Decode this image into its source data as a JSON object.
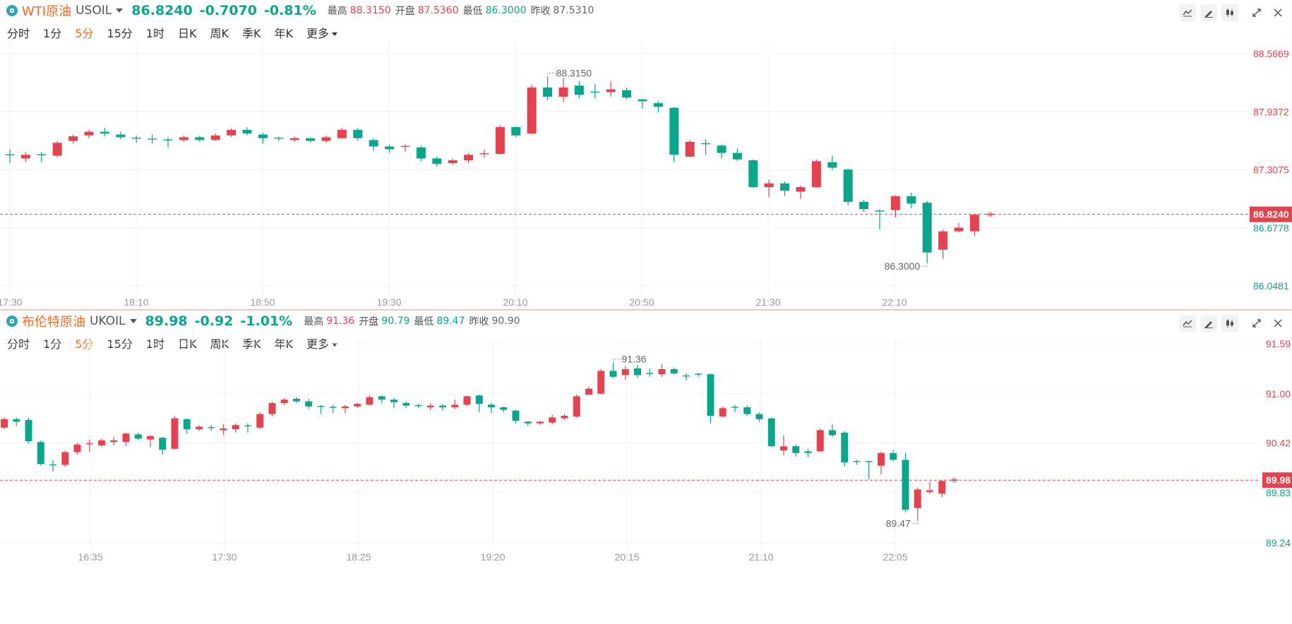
{
  "panels": [
    {
      "name": "WTI原油",
      "symbol": "USOIL",
      "price": "86.8240",
      "change": "-0.7070",
      "change_pct": "-0.81%",
      "high_label": "最高",
      "high": "88.3150",
      "open_label": "开盘",
      "open": "87.5360",
      "low_label": "最低",
      "low": "86.3000",
      "prev_label": "昨收",
      "prev_close": "87.5310",
      "periods": [
        "分时",
        "1分",
        "5分",
        "15分",
        "1时",
        "日K",
        "周K",
        "季K",
        "年K",
        "更多"
      ],
      "active_period": "5分",
      "y_ticks": [
        "88.5669",
        "87.9372",
        "87.3075",
        "86.6778",
        "86.0481"
      ],
      "x_ticks": [
        "17:30",
        "18:10",
        "18:50",
        "19:30",
        "20:10",
        "20:50",
        "21:30",
        "22:10"
      ],
      "current_price_tag": "86.8240",
      "max_label": "88.3150",
      "min_label": "86.3000"
    },
    {
      "name": "布伦特原油",
      "symbol": "UKOIL",
      "price": "89.98",
      "change": "-0.92",
      "change_pct": "-1.01%",
      "high_label": "最高",
      "high": "91.36",
      "open_label": "开盘",
      "open": "90.79",
      "low_label": "最低",
      "low": "89.47",
      "prev_label": "昨收",
      "prev_close": "90.90",
      "periods": [
        "分时",
        "1分",
        "5分",
        "15分",
        "1时",
        "日K",
        "周K",
        "季K",
        "年K",
        "更多"
      ],
      "active_period": "5分",
      "y_ticks": [
        "91.59",
        "91.00",
        "90.42",
        "89.83",
        "89.24"
      ],
      "x_ticks": [
        "16:35",
        "17:30",
        "18:25",
        "19:20",
        "20:15",
        "21:10",
        "22:05"
      ],
      "current_price_tag": "89.98",
      "max_label": "91.36",
      "min_label": "89.47"
    }
  ],
  "colors": {
    "up": "#e5424f",
    "down": "#0aa58b",
    "accent": "#f26b21",
    "grid": "#f0f0f0",
    "axis_text": "#999999"
  },
  "chart_data": [
    {
      "type": "candlestick",
      "title": "WTI原油 USOIL",
      "ylim": [
        86.0481,
        88.5669
      ],
      "y_ticks": [
        88.5669,
        87.9372,
        87.3075,
        86.6778,
        86.0481
      ],
      "x_ticks": [
        "17:30",
        "18:10",
        "18:50",
        "19:30",
        "20:10",
        "20:50",
        "21:30",
        "22:10"
      ],
      "current_price": 86.824,
      "high": 88.315,
      "low": 86.3,
      "candles": [
        {
          "o": 87.47,
          "c": 87.47,
          "h": 87.53,
          "l": 87.38
        },
        {
          "o": 87.43,
          "c": 87.47,
          "h": 87.5,
          "l": 87.39
        },
        {
          "o": 87.47,
          "c": 87.46,
          "h": 87.5,
          "l": 87.39
        },
        {
          "o": 87.46,
          "c": 87.6,
          "h": 87.62,
          "l": 87.44
        },
        {
          "o": 87.62,
          "c": 87.67,
          "h": 87.69,
          "l": 87.59
        },
        {
          "o": 87.68,
          "c": 87.72,
          "h": 87.74,
          "l": 87.65
        },
        {
          "o": 87.72,
          "c": 87.7,
          "h": 87.76,
          "l": 87.67
        },
        {
          "o": 87.69,
          "c": 87.66,
          "h": 87.72,
          "l": 87.64
        },
        {
          "o": 87.65,
          "c": 87.64,
          "h": 87.68,
          "l": 87.6
        },
        {
          "o": 87.64,
          "c": 87.63,
          "h": 87.69,
          "l": 87.59
        },
        {
          "o": 87.63,
          "c": 87.63,
          "h": 87.66,
          "l": 87.55
        },
        {
          "o": 87.63,
          "c": 87.66,
          "h": 87.68,
          "l": 87.61
        },
        {
          "o": 87.66,
          "c": 87.63,
          "h": 87.68,
          "l": 87.61
        },
        {
          "o": 87.63,
          "c": 87.68,
          "h": 87.7,
          "l": 87.62
        },
        {
          "o": 87.68,
          "c": 87.74,
          "h": 87.76,
          "l": 87.66
        },
        {
          "o": 87.74,
          "c": 87.7,
          "h": 87.77,
          "l": 87.68
        },
        {
          "o": 87.69,
          "c": 87.65,
          "h": 87.71,
          "l": 87.59
        },
        {
          "o": 87.65,
          "c": 87.64,
          "h": 87.67,
          "l": 87.62
        },
        {
          "o": 87.63,
          "c": 87.65,
          "h": 87.67,
          "l": 87.61
        },
        {
          "o": 87.65,
          "c": 87.62,
          "h": 87.66,
          "l": 87.6
        },
        {
          "o": 87.62,
          "c": 87.66,
          "h": 87.68,
          "l": 87.6
        },
        {
          "o": 87.65,
          "c": 87.74,
          "h": 87.76,
          "l": 87.64
        },
        {
          "o": 87.74,
          "c": 87.65,
          "h": 87.76,
          "l": 87.62
        },
        {
          "o": 87.63,
          "c": 87.56,
          "h": 87.65,
          "l": 87.51
        },
        {
          "o": 87.56,
          "c": 87.53,
          "h": 87.58,
          "l": 87.49
        },
        {
          "o": 87.55,
          "c": 87.56,
          "h": 87.58,
          "l": 87.5
        },
        {
          "o": 87.55,
          "c": 87.43,
          "h": 87.57,
          "l": 87.4
        },
        {
          "o": 87.43,
          "c": 87.37,
          "h": 87.45,
          "l": 87.34
        },
        {
          "o": 87.38,
          "c": 87.41,
          "h": 87.43,
          "l": 87.36
        },
        {
          "o": 87.41,
          "c": 87.47,
          "h": 87.49,
          "l": 87.38
        },
        {
          "o": 87.47,
          "c": 87.48,
          "h": 87.53,
          "l": 87.44
        },
        {
          "o": 87.48,
          "c": 87.77,
          "h": 87.79,
          "l": 87.47
        },
        {
          "o": 87.77,
          "c": 87.68,
          "h": 87.78,
          "l": 87.66
        },
        {
          "o": 87.7,
          "c": 88.2,
          "h": 88.23,
          "l": 87.69
        },
        {
          "o": 88.2,
          "c": 88.1,
          "h": 88.31,
          "l": 88.06
        },
        {
          "o": 88.1,
          "c": 88.2,
          "h": 88.3,
          "l": 88.04
        },
        {
          "o": 88.22,
          "c": 88.12,
          "h": 88.27,
          "l": 88.08
        },
        {
          "o": 88.15,
          "c": 88.15,
          "h": 88.24,
          "l": 88.08
        },
        {
          "o": 88.15,
          "c": 88.18,
          "h": 88.27,
          "l": 88.1
        },
        {
          "o": 88.17,
          "c": 88.09,
          "h": 88.2,
          "l": 88.07
        },
        {
          "o": 88.07,
          "c": 88.05,
          "h": 88.08,
          "l": 87.97
        },
        {
          "o": 88.03,
          "c": 87.99,
          "h": 88.05,
          "l": 87.93
        },
        {
          "o": 87.98,
          "c": 87.47,
          "h": 87.99,
          "l": 87.39
        },
        {
          "o": 87.45,
          "c": 87.61,
          "h": 87.63,
          "l": 87.44
        },
        {
          "o": 87.59,
          "c": 87.59,
          "h": 87.64,
          "l": 87.47
        },
        {
          "o": 87.57,
          "c": 87.49,
          "h": 87.58,
          "l": 87.43
        },
        {
          "o": 87.49,
          "c": 87.42,
          "h": 87.54,
          "l": 87.4
        },
        {
          "o": 87.41,
          "c": 87.12,
          "h": 87.42,
          "l": 87.11
        },
        {
          "o": 87.12,
          "c": 87.16,
          "h": 87.2,
          "l": 87.01
        },
        {
          "o": 87.16,
          "c": 87.08,
          "h": 87.18,
          "l": 87.02
        },
        {
          "o": 87.07,
          "c": 87.12,
          "h": 87.14,
          "l": 86.99
        },
        {
          "o": 87.12,
          "c": 87.4,
          "h": 87.42,
          "l": 87.11
        },
        {
          "o": 87.39,
          "c": 87.33,
          "h": 87.46,
          "l": 87.3
        },
        {
          "o": 87.31,
          "c": 86.96,
          "h": 87.32,
          "l": 86.92
        },
        {
          "o": 86.96,
          "c": 86.88,
          "h": 86.98,
          "l": 86.85
        },
        {
          "o": 86.86,
          "c": 86.86,
          "h": 86.88,
          "l": 86.66
        },
        {
          "o": 86.87,
          "c": 87.02,
          "h": 87.03,
          "l": 86.79
        },
        {
          "o": 87.02,
          "c": 86.94,
          "h": 87.06,
          "l": 86.89
        },
        {
          "o": 86.95,
          "c": 86.41,
          "h": 86.97,
          "l": 86.3
        },
        {
          "o": 86.44,
          "c": 86.64,
          "h": 86.66,
          "l": 86.34
        },
        {
          "o": 86.64,
          "c": 86.68,
          "h": 86.73,
          "l": 86.63
        },
        {
          "o": 86.64,
          "c": 86.82,
          "h": 86.83,
          "l": 86.59
        },
        {
          "o": 86.82,
          "c": 86.824,
          "h": 86.83,
          "l": 86.81
        }
      ]
    },
    {
      "type": "candlestick",
      "title": "布伦特原油 UKOIL",
      "ylim": [
        89.24,
        91.59
      ],
      "y_ticks": [
        91.59,
        91.0,
        90.42,
        89.83,
        89.24
      ],
      "x_ticks": [
        "16:35",
        "17:30",
        "18:25",
        "19:20",
        "20:15",
        "21:10",
        "22:05"
      ],
      "current_price": 89.98,
      "high": 91.36,
      "low": 89.47,
      "candles": [
        {
          "o": 90.6,
          "c": 90.7,
          "h": 90.72,
          "l": 90.58
        },
        {
          "o": 90.7,
          "c": 90.67,
          "h": 90.72,
          "l": 90.62
        },
        {
          "o": 90.69,
          "c": 90.44,
          "h": 90.72,
          "l": 90.41
        },
        {
          "o": 90.43,
          "c": 90.17,
          "h": 90.45,
          "l": 90.15
        },
        {
          "o": 90.16,
          "c": 90.16,
          "h": 90.22,
          "l": 90.08
        },
        {
          "o": 90.16,
          "c": 90.31,
          "h": 90.33,
          "l": 90.14
        },
        {
          "o": 90.31,
          "c": 90.4,
          "h": 90.42,
          "l": 90.28
        },
        {
          "o": 90.4,
          "c": 90.41,
          "h": 90.46,
          "l": 90.32
        },
        {
          "o": 90.39,
          "c": 90.45,
          "h": 90.47,
          "l": 90.37
        },
        {
          "o": 90.43,
          "c": 90.45,
          "h": 90.49,
          "l": 90.39
        },
        {
          "o": 90.43,
          "c": 90.53,
          "h": 90.54,
          "l": 90.38
        },
        {
          "o": 90.52,
          "c": 90.47,
          "h": 90.54,
          "l": 90.45
        },
        {
          "o": 90.46,
          "c": 90.5,
          "h": 90.51,
          "l": 90.37
        },
        {
          "o": 90.48,
          "c": 90.34,
          "h": 90.49,
          "l": 90.28
        },
        {
          "o": 90.35,
          "c": 90.71,
          "h": 90.74,
          "l": 90.34
        },
        {
          "o": 90.7,
          "c": 90.58,
          "h": 90.71,
          "l": 90.53
        },
        {
          "o": 90.58,
          "c": 90.61,
          "h": 90.63,
          "l": 90.56
        },
        {
          "o": 90.6,
          "c": 90.59,
          "h": 90.63,
          "l": 90.56
        },
        {
          "o": 90.57,
          "c": 90.59,
          "h": 90.64,
          "l": 90.51
        },
        {
          "o": 90.58,
          "c": 90.63,
          "h": 90.65,
          "l": 90.54
        },
        {
          "o": 90.62,
          "c": 90.61,
          "h": 90.65,
          "l": 90.54
        },
        {
          "o": 90.6,
          "c": 90.76,
          "h": 90.78,
          "l": 90.58
        },
        {
          "o": 90.76,
          "c": 90.89,
          "h": 90.91,
          "l": 90.73
        },
        {
          "o": 90.89,
          "c": 90.93,
          "h": 90.95,
          "l": 90.87
        },
        {
          "o": 90.94,
          "c": 90.91,
          "h": 90.96,
          "l": 90.89
        },
        {
          "o": 90.91,
          "c": 90.85,
          "h": 90.94,
          "l": 90.82
        },
        {
          "o": 90.85,
          "c": 90.84,
          "h": 90.87,
          "l": 90.76
        },
        {
          "o": 90.84,
          "c": 90.84,
          "h": 90.87,
          "l": 90.77
        },
        {
          "o": 90.83,
          "c": 90.85,
          "h": 90.87,
          "l": 90.77
        },
        {
          "o": 90.85,
          "c": 90.88,
          "h": 90.89,
          "l": 90.83
        },
        {
          "o": 90.87,
          "c": 90.96,
          "h": 90.98,
          "l": 90.86
        },
        {
          "o": 90.97,
          "c": 90.93,
          "h": 90.98,
          "l": 90.89
        },
        {
          "o": 90.93,
          "c": 90.9,
          "h": 90.95,
          "l": 90.83
        },
        {
          "o": 90.89,
          "c": 90.86,
          "h": 90.91,
          "l": 90.83
        },
        {
          "o": 90.86,
          "c": 90.85,
          "h": 90.88,
          "l": 90.83
        },
        {
          "o": 90.84,
          "c": 90.86,
          "h": 90.89,
          "l": 90.81
        },
        {
          "o": 90.86,
          "c": 90.84,
          "h": 90.88,
          "l": 90.8
        },
        {
          "o": 90.84,
          "c": 90.87,
          "h": 90.93,
          "l": 90.82
        },
        {
          "o": 90.87,
          "c": 90.97,
          "h": 90.98,
          "l": 90.85
        },
        {
          "o": 90.98,
          "c": 90.88,
          "h": 90.99,
          "l": 90.78
        },
        {
          "o": 90.87,
          "c": 90.84,
          "h": 90.89,
          "l": 90.77
        },
        {
          "o": 90.84,
          "c": 90.81,
          "h": 90.85,
          "l": 90.78
        },
        {
          "o": 90.8,
          "c": 90.68,
          "h": 90.81,
          "l": 90.65
        },
        {
          "o": 90.67,
          "c": 90.65,
          "h": 90.68,
          "l": 90.62
        },
        {
          "o": 90.65,
          "c": 90.67,
          "h": 90.68,
          "l": 90.63
        },
        {
          "o": 90.66,
          "c": 90.72,
          "h": 90.75,
          "l": 90.64
        },
        {
          "o": 90.71,
          "c": 90.74,
          "h": 90.76,
          "l": 90.69
        },
        {
          "o": 90.73,
          "c": 90.97,
          "h": 90.99,
          "l": 90.72
        },
        {
          "o": 90.99,
          "c": 91.06,
          "h": 91.08,
          "l": 90.98
        },
        {
          "o": 91.0,
          "c": 91.27,
          "h": 91.29,
          "l": 90.99
        },
        {
          "o": 91.27,
          "c": 91.2,
          "h": 91.36,
          "l": 91.18
        },
        {
          "o": 91.22,
          "c": 91.29,
          "h": 91.33,
          "l": 91.16
        },
        {
          "o": 91.3,
          "c": 91.22,
          "h": 91.34,
          "l": 91.19
        },
        {
          "o": 91.24,
          "c": 91.24,
          "h": 91.3,
          "l": 91.2
        },
        {
          "o": 91.23,
          "c": 91.29,
          "h": 91.35,
          "l": 91.2
        },
        {
          "o": 91.29,
          "c": 91.24,
          "h": 91.31,
          "l": 91.23
        },
        {
          "o": 91.21,
          "c": 91.21,
          "h": 91.24,
          "l": 91.16
        },
        {
          "o": 91.23,
          "c": 91.22,
          "h": 91.25,
          "l": 91.2
        },
        {
          "o": 91.23,
          "c": 90.74,
          "h": 91.24,
          "l": 90.65
        },
        {
          "o": 90.73,
          "c": 90.83,
          "h": 90.85,
          "l": 90.72
        },
        {
          "o": 90.84,
          "c": 90.84,
          "h": 90.87,
          "l": 90.78
        },
        {
          "o": 90.84,
          "c": 90.76,
          "h": 90.86,
          "l": 90.74
        },
        {
          "o": 90.76,
          "c": 90.7,
          "h": 90.78,
          "l": 90.67
        },
        {
          "o": 90.71,
          "c": 90.38,
          "h": 90.72,
          "l": 90.37
        },
        {
          "o": 90.33,
          "c": 90.38,
          "h": 90.51,
          "l": 90.27
        },
        {
          "o": 90.38,
          "c": 90.3,
          "h": 90.4,
          "l": 90.26
        },
        {
          "o": 90.32,
          "c": 90.3,
          "h": 90.35,
          "l": 90.25
        },
        {
          "o": 90.32,
          "c": 90.57,
          "h": 90.59,
          "l": 90.31
        },
        {
          "o": 90.57,
          "c": 90.51,
          "h": 90.64,
          "l": 90.49
        },
        {
          "o": 90.54,
          "c": 90.19,
          "h": 90.56,
          "l": 90.14
        },
        {
          "o": 90.2,
          "c": 90.2,
          "h": 90.22,
          "l": 90.16
        },
        {
          "o": 90.2,
          "c": 90.19,
          "h": 90.21,
          "l": 89.99
        },
        {
          "o": 90.15,
          "c": 90.3,
          "h": 90.32,
          "l": 90.05
        },
        {
          "o": 90.3,
          "c": 90.22,
          "h": 90.34,
          "l": 90.2
        },
        {
          "o": 90.22,
          "c": 89.63,
          "h": 90.3,
          "l": 89.6
        },
        {
          "o": 89.65,
          "c": 89.87,
          "h": 89.89,
          "l": 89.51
        },
        {
          "o": 89.84,
          "c": 89.86,
          "h": 89.96,
          "l": 89.82
        },
        {
          "o": 89.82,
          "c": 89.97,
          "h": 89.98,
          "l": 89.78
        },
        {
          "o": 89.98,
          "c": 89.98,
          "h": 89.99,
          "l": 89.97
        }
      ]
    }
  ]
}
